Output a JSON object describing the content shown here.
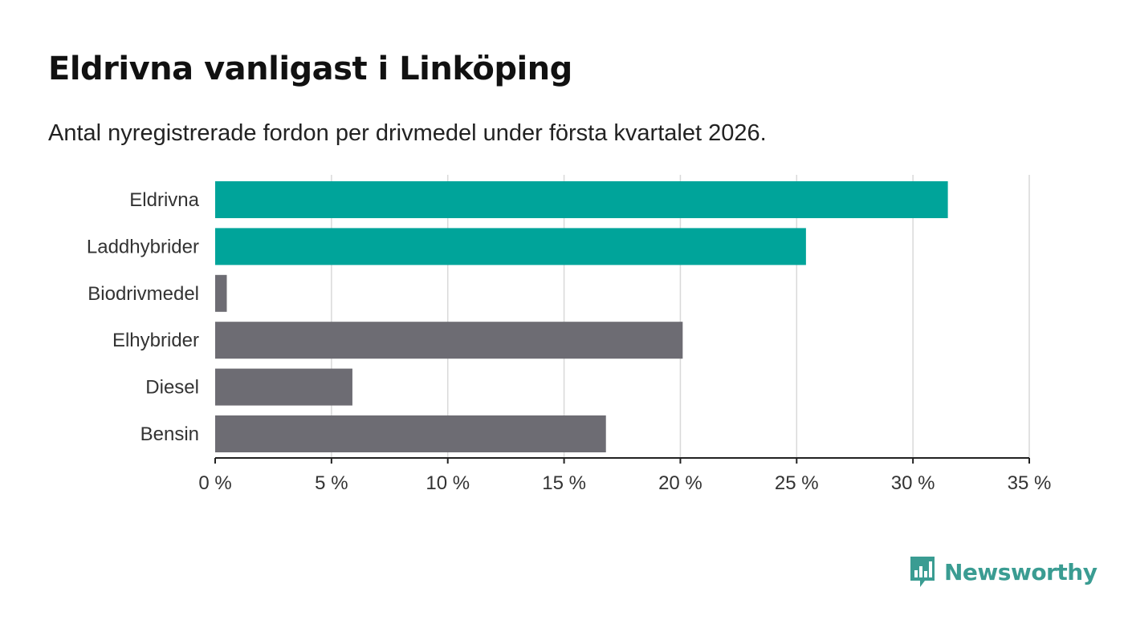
{
  "header": {
    "title": "Eldrivna vanligast i Linköping",
    "subtitle": "Antal nyregistrerade fordon per drivmedel under första kvartalet 2026."
  },
  "brand": {
    "name": "Newsworthy",
    "icon": "bar-chart-speech-bubble-icon",
    "color": "#3a9c92"
  },
  "colors": {
    "highlight": "#00a49a",
    "default": "#6d6c73",
    "grid": "#d9d9d9",
    "axis": "#222222"
  },
  "chart_data": {
    "type": "bar",
    "orientation": "horizontal",
    "title": "Eldrivna vanligast i Linköping",
    "subtitle": "Antal nyregistrerade fordon per drivmedel under första kvartalet 2026.",
    "xlabel": "",
    "ylabel": "",
    "categories": [
      "Eldrivna",
      "Laddhybrider",
      "Biodrivmedel",
      "Elhybrider",
      "Diesel",
      "Bensin"
    ],
    "values": [
      31.5,
      25.4,
      0.5,
      20.1,
      5.9,
      16.8
    ],
    "highlighted": [
      true,
      true,
      false,
      false,
      false,
      false
    ],
    "xlim": [
      0,
      35
    ],
    "xticks": [
      0,
      5,
      10,
      15,
      20,
      25,
      30,
      35
    ],
    "tick_labels": [
      "0 %",
      "5 %",
      "10 %",
      "15 %",
      "20 %",
      "25 %",
      "30 %",
      "35 %"
    ],
    "grid": true,
    "legend": "none"
  }
}
